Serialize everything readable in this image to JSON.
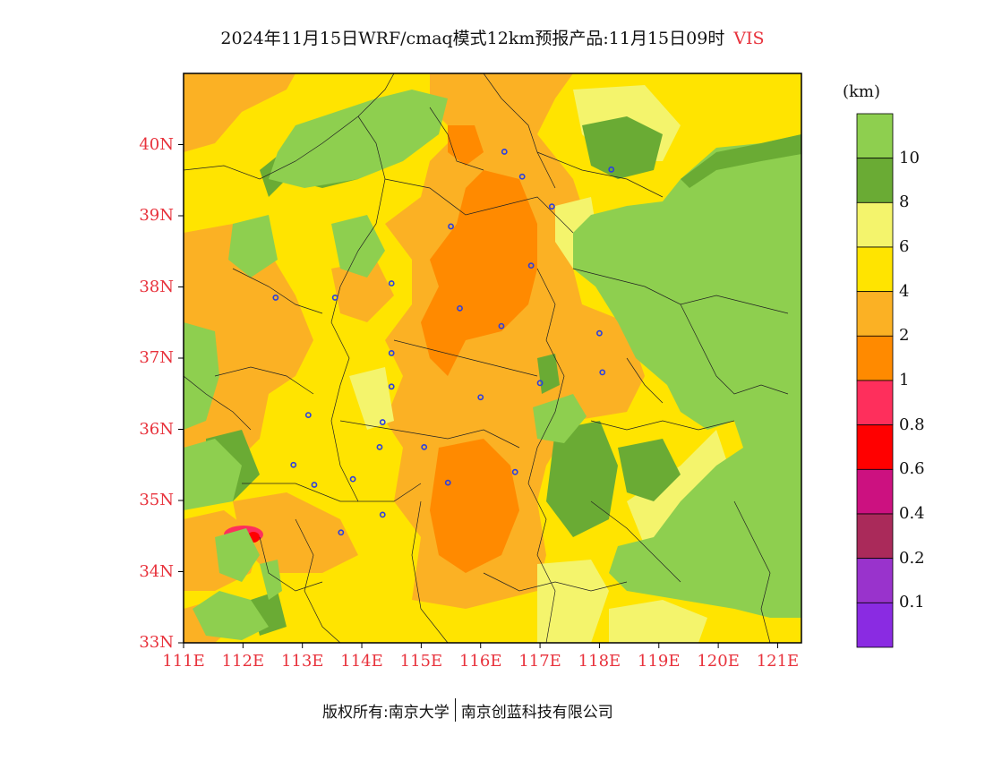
{
  "title": {
    "main": "2024年11月15日WRF/cmaq模式12km预报产品:11月15日09时",
    "variable": "VIS"
  },
  "map": {
    "lat_labels": [
      "40N",
      "39N",
      "38N",
      "37N",
      "36N",
      "35N",
      "34N",
      "33N"
    ],
    "lat_values": [
      40,
      39,
      38,
      37,
      36,
      35,
      34,
      33
    ],
    "lon_labels": [
      "111E",
      "112E",
      "113E",
      "114E",
      "115E",
      "116E",
      "117E",
      "118E",
      "119E",
      "120E",
      "121E"
    ],
    "lon_values": [
      111,
      112,
      113,
      114,
      115,
      116,
      117,
      118,
      119,
      120,
      121
    ],
    "lon_range": [
      111,
      121.4
    ],
    "lat_range": [
      33,
      41
    ],
    "sea_color": "#8ecf4f",
    "land_color": "#ffe400",
    "city_markers": [
      [
        116.4,
        39.9
      ],
      [
        116.7,
        39.55
      ],
      [
        117.2,
        39.13
      ],
      [
        118.2,
        39.65
      ],
      [
        114.5,
        38.05
      ],
      [
        115.5,
        38.85
      ],
      [
        116.85,
        38.3
      ],
      [
        115.65,
        37.7
      ],
      [
        116.35,
        37.45
      ],
      [
        113.55,
        37.85
      ],
      [
        112.55,
        37.85
      ],
      [
        114.5,
        37.07
      ],
      [
        114.5,
        36.6
      ],
      [
        116.0,
        36.45
      ],
      [
        117.0,
        36.65
      ],
      [
        118.05,
        36.8
      ],
      [
        118.0,
        37.35
      ],
      [
        114.35,
        36.1
      ],
      [
        114.3,
        35.75
      ],
      [
        115.05,
        35.75
      ],
      [
        113.1,
        36.2
      ],
      [
        112.85,
        35.5
      ],
      [
        113.2,
        35.22
      ],
      [
        113.85,
        35.3
      ],
      [
        114.35,
        34.8
      ],
      [
        115.45,
        35.25
      ],
      [
        116.58,
        35.4
      ],
      [
        113.65,
        34.55
      ]
    ]
  },
  "colorbar": {
    "unit": "(km)",
    "colors": [
      "#8ecf4f",
      "#6aab34",
      "#f4f46c",
      "#ffe400",
      "#fbb124",
      "#ff8a00",
      "#fe2f5c",
      "#ff0000",
      "#cc1180",
      "#aa2a5a",
      "#9933cc",
      "#8a2be2"
    ],
    "labels": [
      "10",
      "8",
      "6",
      "4",
      "2",
      "1",
      "0.8",
      "0.6",
      "0.4",
      "0.2",
      "0.1"
    ]
  },
  "footer": {
    "left": "版权所有:南京大学",
    "right": "南京创蓝科技有限公司"
  }
}
